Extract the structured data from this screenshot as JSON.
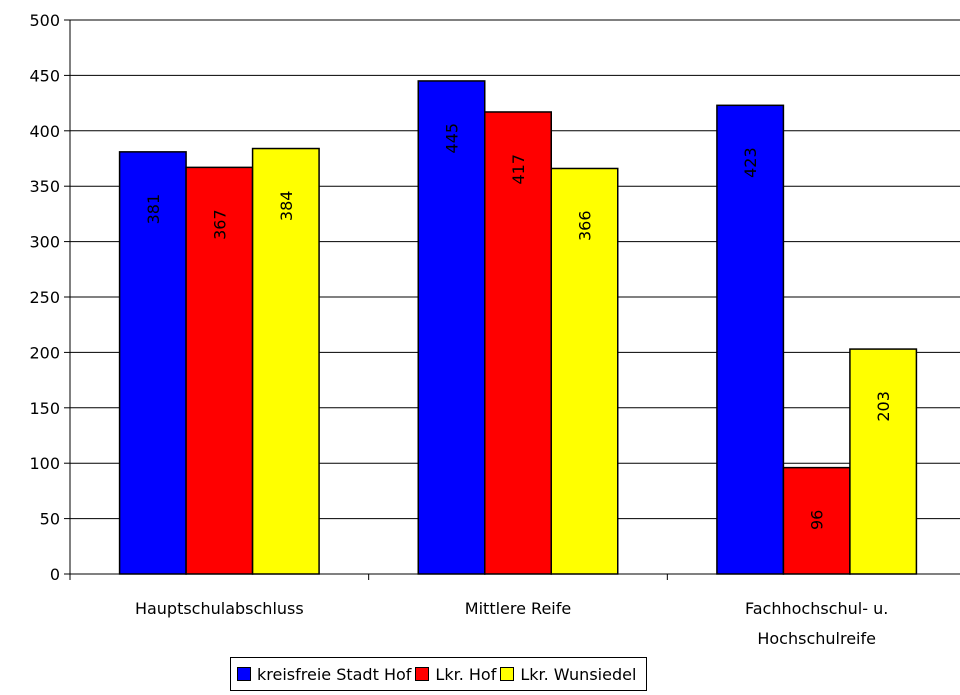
{
  "chart_data": {
    "type": "bar",
    "categories": [
      "Hauptschulabschluss",
      "Mittlere Reife",
      "Fachhochschul- u. Hochschulreife"
    ],
    "series": [
      {
        "name": "kreisfreie Stadt Hof",
        "color": "#0000ff",
        "values": [
          381,
          445,
          423
        ]
      },
      {
        "name": "Lkr. Hof",
        "color": "#ff0000",
        "values": [
          367,
          417,
          96
        ]
      },
      {
        "name": "Lkr. Wunsiedel",
        "color": "#ffff00",
        "values": [
          384,
          366,
          203
        ]
      }
    ],
    "ylim": [
      0,
      500
    ],
    "yticks": [
      0,
      50,
      100,
      150,
      200,
      250,
      300,
      350,
      400,
      450,
      500
    ],
    "grid": true,
    "legend": "bottom"
  }
}
